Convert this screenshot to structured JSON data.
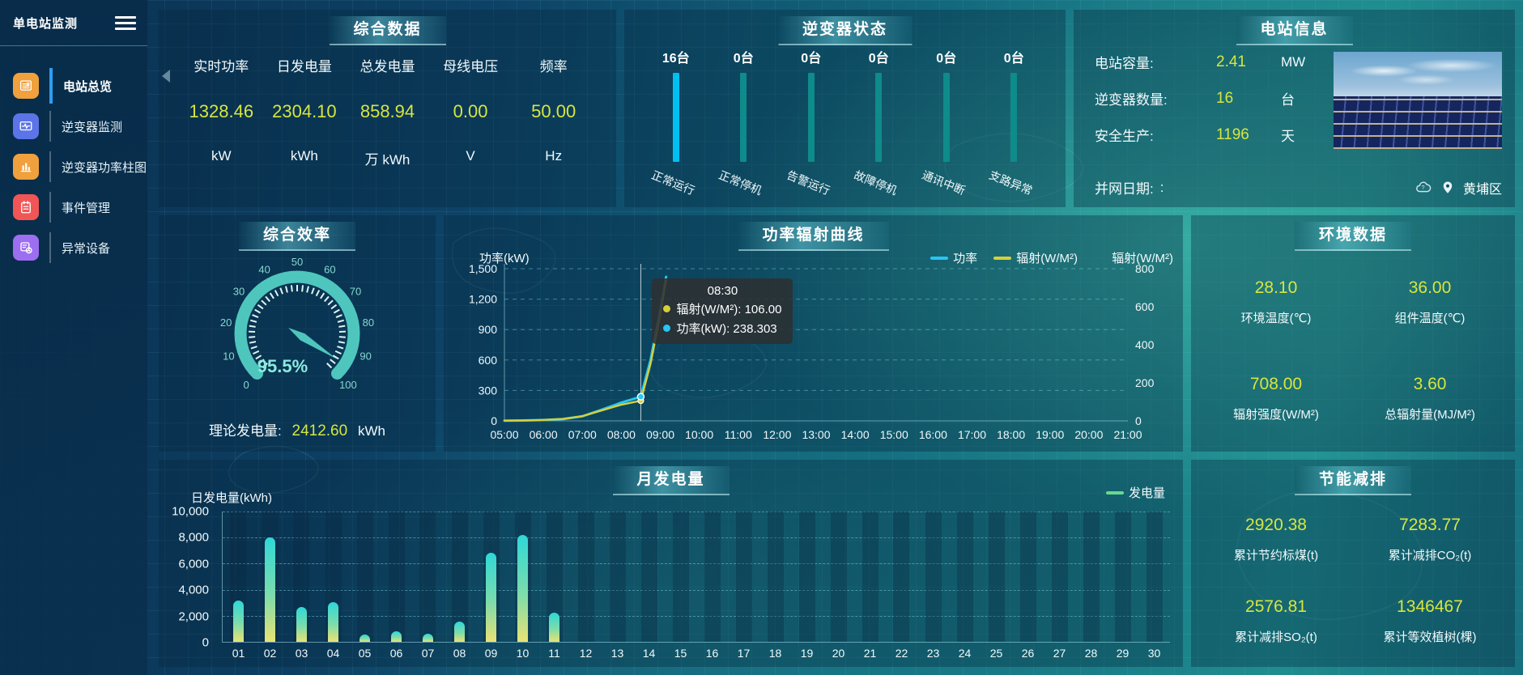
{
  "app": {
    "title": "单电站监测"
  },
  "sidebar": {
    "items": [
      {
        "label": "电站总览",
        "icon": "overview-icon",
        "color": "#f0a03c",
        "active": true
      },
      {
        "label": "逆变器监测",
        "icon": "inverter-monitor-icon",
        "color": "#5b74e8",
        "active": false
      },
      {
        "label": "逆变器功率柱图",
        "icon": "power-bars-icon",
        "color": "#f0a03c",
        "active": false
      },
      {
        "label": "事件管理",
        "icon": "event-icon",
        "color": "#f25555",
        "active": false
      },
      {
        "label": "异常设备",
        "icon": "abnormal-device-icon",
        "color": "#9d6ef0",
        "active": false
      }
    ]
  },
  "summary": {
    "title": "综合数据",
    "metrics": [
      {
        "label": "实时功率",
        "value": "1328.46",
        "unit": "kW"
      },
      {
        "label": "日发电量",
        "value": "2304.10",
        "unit": "kWh"
      },
      {
        "label": "总发电量",
        "value": "858.94",
        "unit": "万 kWh"
      },
      {
        "label": "母线电压",
        "value": "0.00",
        "unit": "V"
      },
      {
        "label": "频率",
        "value": "50.00",
        "unit": "Hz"
      }
    ]
  },
  "inverter_status": {
    "title": "逆变器状态",
    "items": [
      {
        "count": "16台",
        "label": "正常运行",
        "bar_color": "#00c0f2"
      },
      {
        "count": "0台",
        "label": "正常停机",
        "bar_color": "#0e8b8b"
      },
      {
        "count": "0台",
        "label": "告警运行",
        "bar_color": "#0e8b8b"
      },
      {
        "count": "0台",
        "label": "故障停机",
        "bar_color": "#0e8b8b"
      },
      {
        "count": "0台",
        "label": "通讯中断",
        "bar_color": "#0e8b8b"
      },
      {
        "count": "0台",
        "label": "支路异常",
        "bar_color": "#0e8b8b"
      }
    ]
  },
  "station_info": {
    "title": "电站信息",
    "rows": [
      {
        "label": "电站容量:",
        "value": "2.41",
        "unit": "MW"
      },
      {
        "label": "逆变器数量:",
        "value": "16",
        "unit": "台"
      },
      {
        "label": "安全生产:",
        "value": "1196",
        "unit": "天"
      }
    ],
    "grid_date_label": "并网日期:",
    "grid_date_value": ":",
    "location": "黄埔区"
  },
  "efficiency": {
    "title": "综合效率",
    "value_text": "95.5%",
    "footer_label": "理论发电量:",
    "footer_value": "2412.60",
    "footer_unit": "kWh"
  },
  "power_curve": {
    "title": "功率辐射曲线",
    "left_axis_title": "功率(kW)",
    "right_axis_title": "辐射(W/M²)",
    "tooltip": {
      "time": "08:30",
      "lines": [
        {
          "name": "辐射(W/M²)",
          "value": "106.00",
          "color": "#d6cf3a"
        },
        {
          "name": "功率(kW)",
          "value": "238.303",
          "color": "#27c6f3"
        }
      ]
    }
  },
  "environment": {
    "title": "环境数据",
    "metrics": [
      {
        "value": "28.10",
        "label": "环境温度(℃)"
      },
      {
        "value": "36.00",
        "label": "组件温度(℃)"
      },
      {
        "value": "708.00",
        "label": "辐射强度(W/M²)"
      },
      {
        "value": "3.60",
        "label": "总辐射量(MJ/M²)"
      }
    ]
  },
  "monthly": {
    "title": "月发电量",
    "ylabel": "日发电量(kWh)",
    "legend": "发电量",
    "legend_color": "#67d98f"
  },
  "saving": {
    "title": "节能减排",
    "metrics": [
      {
        "value": "2920.38",
        "label": "累计节约标煤(t)"
      },
      {
        "value": "7283.77",
        "label": "累计减排CO₂(t)"
      },
      {
        "value": "2576.81",
        "label": "累计减排SO₂(t)"
      },
      {
        "value": "1346467",
        "label": "累计等效植树(棵)"
      }
    ]
  },
  "colors": {
    "accent_yellow": "#d7e63f",
    "inverter_active_bar": "#00c0f2",
    "inverter_idle_bar": "#0e8b8b",
    "gauge": "#4fc6bd",
    "line_power": "#27c6f3",
    "line_radiation": "#d6cf3a",
    "month_bar_top": "#2fd8d8",
    "month_bar_bottom": "#e9e273",
    "legend_green": "#67d98f",
    "active_menu_indicator": "#2e9df0"
  },
  "chart_data": [
    {
      "type": "line",
      "title": "功率辐射曲线",
      "x_range_hours": [
        5,
        21
      ],
      "x_tick_labels": [
        "05:00",
        "06:00",
        "07:00",
        "08:00",
        "09:00",
        "10:00",
        "11:00",
        "12:00",
        "13:00",
        "14:00",
        "15:00",
        "16:00",
        "17:00",
        "18:00",
        "19:00",
        "20:00",
        "21:00"
      ],
      "x_hours": [
        5,
        5.5,
        6,
        6.5,
        7,
        7.5,
        8,
        8.5,
        8.75,
        9,
        9.15
      ],
      "series": [
        {
          "name": "功率",
          "axis": "left",
          "color": "#27c6f3",
          "values": [
            2,
            4,
            8,
            18,
            45,
            110,
            180,
            238.3,
            600,
            1100,
            1420
          ]
        },
        {
          "name": "辐射(W/M²)",
          "axis": "right",
          "color": "#d6cf3a",
          "values": [
            1,
            2,
            5,
            10,
            25,
            55,
            85,
            106,
            300,
            560,
            740
          ]
        }
      ],
      "left_axis": {
        "label": "功率(kW)",
        "ticks": [
          0,
          300,
          600,
          900,
          1200,
          1500
        ]
      },
      "right_axis": {
        "label": "辐射(W/M²)",
        "ticks": [
          0,
          200,
          400,
          600,
          800
        ]
      },
      "crosshair_hour": 8.5,
      "legend_position": "top-right",
      "grid": true
    },
    {
      "type": "bar",
      "title": "月发电量",
      "ylabel": "日发电量(kWh)",
      "legend": "发电量",
      "categories": [
        "01",
        "02",
        "03",
        "04",
        "05",
        "06",
        "07",
        "08",
        "09",
        "10",
        "11",
        "12",
        "13",
        "14",
        "15",
        "16",
        "17",
        "18",
        "19",
        "20",
        "21",
        "22",
        "23",
        "24",
        "25",
        "26",
        "27",
        "28",
        "29",
        "30"
      ],
      "values": [
        3150,
        8000,
        2700,
        3050,
        550,
        800,
        650,
        1550,
        6850,
        8200,
        2250,
        0,
        0,
        0,
        0,
        0,
        0,
        0,
        0,
        0,
        0,
        0,
        0,
        0,
        0,
        0,
        0,
        0,
        0,
        0
      ],
      "ylim": [
        0,
        10000
      ],
      "yticks": [
        0,
        2000,
        4000,
        6000,
        8000,
        10000
      ],
      "grid": true
    },
    {
      "type": "bar",
      "title": "逆变器状态",
      "categories": [
        "正常运行",
        "正常停机",
        "告警运行",
        "故障停机",
        "通讯中断",
        "支路异常"
      ],
      "values": [
        16,
        0,
        0,
        0,
        0,
        0
      ],
      "unit": "台"
    },
    {
      "type": "gauge",
      "title": "综合效率",
      "value": 95.5,
      "min": 0,
      "max": 100,
      "tick_labels": [
        0,
        10,
        20,
        30,
        40,
        50,
        60,
        70,
        80,
        90,
        100
      ]
    }
  ]
}
